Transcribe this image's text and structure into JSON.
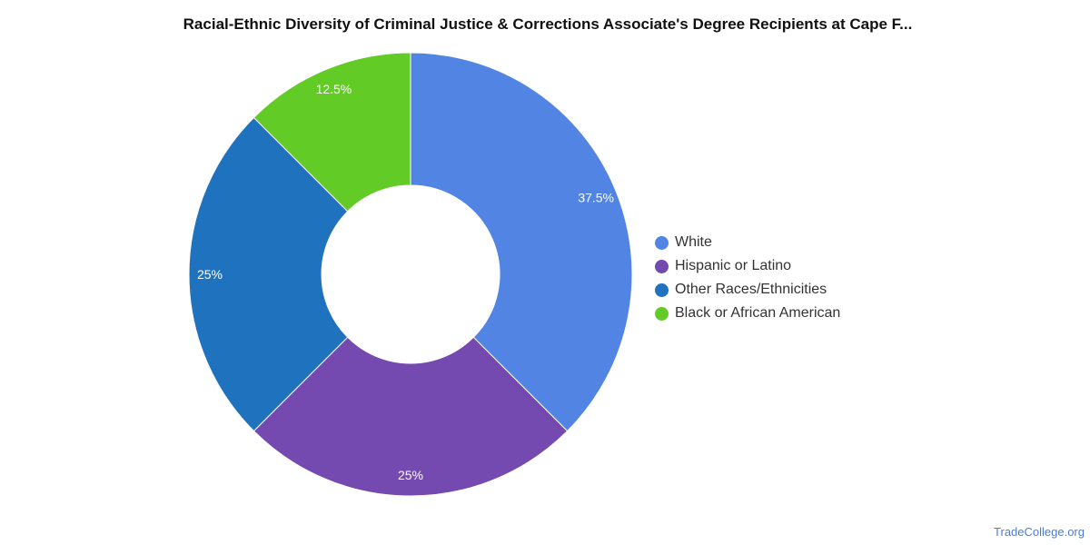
{
  "chart_data": {
    "type": "pie",
    "title": "Racial-Ethnic Diversity of Criminal Justice & Corrections Associate's Degree Recipients at Cape F...",
    "donut": true,
    "legend_position": "right",
    "slices": [
      {
        "label": "White",
        "value": 37.5,
        "display": "37.5%",
        "color": "#5285e3"
      },
      {
        "label": "Hispanic or Latino",
        "value": 25,
        "display": "25%",
        "color": "#7449b0"
      },
      {
        "label": "Other Races/Ethnicities",
        "value": 25,
        "display": "25%",
        "color": "#1f72bd"
      },
      {
        "label": "Black or African American",
        "value": 12.5,
        "display": "12.5%",
        "color": "#62cb25"
      }
    ]
  },
  "source": "TradeCollege.org"
}
